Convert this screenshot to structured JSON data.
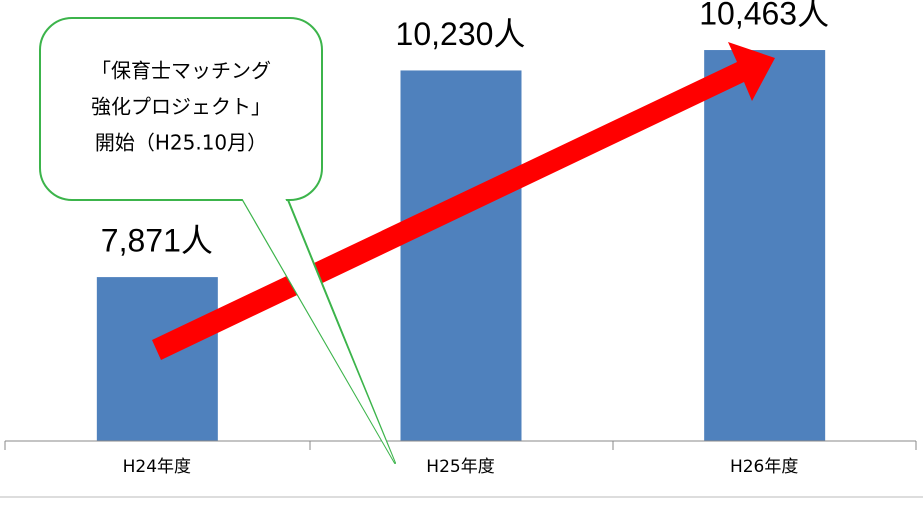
{
  "chart_data": {
    "type": "bar",
    "categories": [
      "H24年度",
      "H25年度",
      "H26年度"
    ],
    "values": [
      7871,
      10230,
      10463
    ],
    "value_labels": [
      "7,871人",
      "10,230人",
      "10,463人"
    ],
    "color": "#4f81bd",
    "ylim": [
      6000,
      11000
    ],
    "annotation": [
      "「保育士マッチング",
      "強化プロジェクト」",
      "開始（H25.10月）"
    ]
  }
}
